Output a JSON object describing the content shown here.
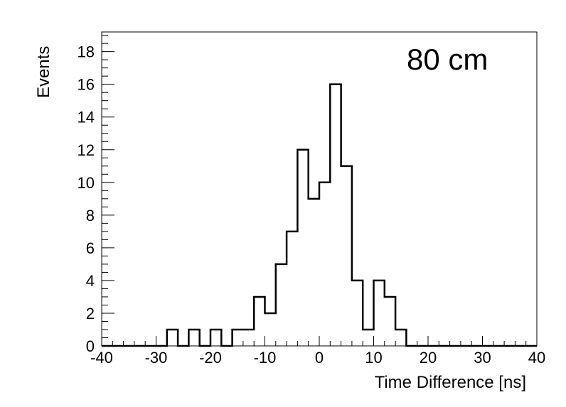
{
  "chart_data": {
    "type": "histogram",
    "title": "",
    "annotation": "80 cm",
    "xlabel": "Time Difference [ns]",
    "ylabel": "Events",
    "xlim": [
      -40,
      40
    ],
    "ylim": [
      0,
      19.2
    ],
    "bin_edges": [
      -40,
      -38,
      -36,
      -34,
      -32,
      -30,
      -28,
      -26,
      -24,
      -22,
      -20,
      -18,
      -16,
      -14,
      -12,
      -10,
      -8,
      -6,
      -4,
      -2,
      0,
      2,
      4,
      6,
      8,
      10,
      12,
      14,
      16,
      18,
      20,
      22,
      24,
      26,
      28,
      30,
      32,
      34,
      36,
      38,
      40
    ],
    "values": [
      0,
      0,
      0,
      0,
      0,
      0,
      1,
      0,
      1,
      0,
      1,
      0,
      1,
      1,
      3,
      2,
      5,
      7,
      12,
      9,
      10,
      16,
      11,
      4,
      1,
      4,
      3,
      1,
      0,
      0,
      0,
      0,
      0,
      0,
      0,
      0,
      0,
      0,
      0,
      0
    ],
    "x_ticks": [
      -40,
      -30,
      -20,
      -10,
      0,
      10,
      20,
      30,
      40
    ],
    "x_tick_labels": [
      "-40",
      "-30",
      "-20",
      "-10",
      "0",
      "10",
      "20",
      "30",
      "40"
    ],
    "y_ticks": [
      0,
      2,
      4,
      6,
      8,
      10,
      12,
      14,
      16,
      18
    ],
    "y_tick_labels": [
      "0",
      "2",
      "4",
      "6",
      "8",
      "10",
      "12",
      "14",
      "16",
      "18"
    ],
    "line_color": "#000000",
    "grid": false
  }
}
